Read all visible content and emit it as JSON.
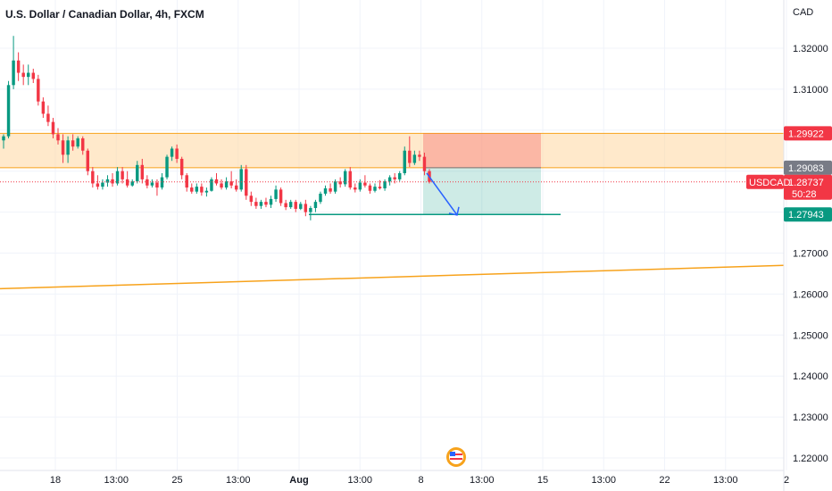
{
  "chart_data": {
    "type": "candlestick",
    "title": "U.S. Dollar / Canadian Dollar, 4h, FXCM",
    "currency": "CAD",
    "symbol": "USDCAD",
    "countdown": "50:28",
    "y_ticks": [
      "1.32000",
      "1.31000",
      "1.30000",
      "1.29000",
      "1.28000",
      "1.27000",
      "1.26000",
      "1.25000",
      "1.24000",
      "1.23000",
      "1.22000"
    ],
    "x_ticks": [
      "18",
      "13:00",
      "25",
      "13:00",
      "Aug",
      "13:00",
      "8",
      "13:00",
      "15",
      "13:00",
      "22",
      "13:00",
      "2"
    ],
    "ylim": [
      1.2192,
      1.3228
    ],
    "price_tags": [
      {
        "name": "zone-top",
        "label": "1.29922",
        "price": 1.29922,
        "color": "#f23645"
      },
      {
        "name": "zone-bottom",
        "label": "1.29083",
        "price": 1.29083,
        "color": "#787b86"
      },
      {
        "name": "current",
        "label": "1.28737",
        "price": 1.28737,
        "color": "#f23645"
      },
      {
        "name": "target",
        "label": "1.27943",
        "price": 1.27943,
        "color": "#089981"
      }
    ],
    "supply_zone": {
      "top": 1.29922,
      "bottom": 1.29083,
      "color": "#ffd7a0"
    },
    "position": {
      "type": "short",
      "entry": 1.29083,
      "stop": 1.29922,
      "target": 1.27943
    },
    "trendline": {
      "start_price": 1.2613,
      "end_price": 1.267,
      "color": "#f7a21b"
    },
    "colors": {
      "up": "#089981",
      "down": "#f23645",
      "grid": "#f0f3fa",
      "text": "#131722"
    },
    "candles": [
      [
        1.2975,
        1.299,
        1.2955,
        1.2985
      ],
      [
        1.2985,
        1.312,
        1.298,
        1.311
      ],
      [
        1.311,
        1.323,
        1.31,
        1.317
      ],
      [
        1.317,
        1.319,
        1.312,
        1.314
      ],
      [
        1.314,
        1.316,
        1.311,
        1.313
      ],
      [
        1.313,
        1.316,
        1.311,
        1.314
      ],
      [
        1.314,
        1.315,
        1.3115,
        1.3125
      ],
      [
        1.3125,
        1.3135,
        1.306,
        1.307
      ],
      [
        1.307,
        1.308,
        1.303,
        1.304
      ],
      [
        1.304,
        1.306,
        1.301,
        1.302
      ],
      [
        1.302,
        1.303,
        1.298,
        1.299
      ],
      [
        1.299,
        1.3005,
        1.2965,
        1.2975
      ],
      [
        1.2975,
        1.299,
        1.292,
        1.294
      ],
      [
        1.294,
        1.2985,
        1.292,
        1.2975
      ],
      [
        1.2975,
        1.299,
        1.295,
        1.296
      ],
      [
        1.296,
        1.2985,
        1.2955,
        1.298
      ],
      [
        1.298,
        1.2985,
        1.294,
        1.295
      ],
      [
        1.295,
        1.2955,
        1.289,
        1.29
      ],
      [
        1.29,
        1.291,
        1.286,
        1.287
      ],
      [
        1.287,
        1.289,
        1.2855,
        1.2862
      ],
      [
        1.2862,
        1.288,
        1.2855,
        1.2872
      ],
      [
        1.2872,
        1.289,
        1.2862,
        1.288
      ],
      [
        1.288,
        1.2895,
        1.2862,
        1.287
      ],
      [
        1.287,
        1.291,
        1.2865,
        1.29
      ],
      [
        1.29,
        1.291,
        1.287,
        1.288
      ],
      [
        1.288,
        1.29,
        1.286,
        1.2865
      ],
      [
        1.2865,
        1.288,
        1.2862,
        1.2875
      ],
      [
        1.2875,
        1.2925,
        1.287,
        1.2915
      ],
      [
        1.2915,
        1.293,
        1.287,
        1.288
      ],
      [
        1.288,
        1.289,
        1.2858,
        1.2865
      ],
      [
        1.2865,
        1.288,
        1.286,
        1.2872
      ],
      [
        1.2872,
        1.288,
        1.284,
        1.286
      ],
      [
        1.286,
        1.2895,
        1.2855,
        1.2885
      ],
      [
        1.2885,
        1.294,
        1.288,
        1.2935
      ],
      [
        1.2935,
        1.296,
        1.2925,
        1.2955
      ],
      [
        1.2955,
        1.2965,
        1.292,
        1.293
      ],
      [
        1.293,
        1.2935,
        1.288,
        1.289
      ],
      [
        1.289,
        1.2895,
        1.285,
        1.286
      ],
      [
        1.286,
        1.287,
        1.2845,
        1.285
      ],
      [
        1.285,
        1.287,
        1.2845,
        1.2862
      ],
      [
        1.2862,
        1.287,
        1.284,
        1.2848
      ],
      [
        1.2848,
        1.286,
        1.2838,
        1.2852
      ],
      [
        1.2852,
        1.2885,
        1.285,
        1.288
      ],
      [
        1.288,
        1.2895,
        1.2865,
        1.287
      ],
      [
        1.287,
        1.288,
        1.2855,
        1.286
      ],
      [
        1.286,
        1.2885,
        1.2855,
        1.2875
      ],
      [
        1.2875,
        1.29,
        1.2858,
        1.2865
      ],
      [
        1.2865,
        1.288,
        1.285,
        1.2855
      ],
      [
        1.2855,
        1.2915,
        1.285,
        1.2905
      ],
      [
        1.2905,
        1.2915,
        1.283,
        1.284
      ],
      [
        1.284,
        1.285,
        1.2815,
        1.2825
      ],
      [
        1.2825,
        1.2835,
        1.2808,
        1.2815
      ],
      [
        1.2815,
        1.283,
        1.2808,
        1.2825
      ],
      [
        1.2825,
        1.2835,
        1.2812,
        1.2818
      ],
      [
        1.2818,
        1.284,
        1.281,
        1.2832
      ],
      [
        1.2832,
        1.2865,
        1.2825,
        1.2855
      ],
      [
        1.2855,
        1.286,
        1.2815,
        1.2822
      ],
      [
        1.2822,
        1.283,
        1.2805,
        1.2812
      ],
      [
        1.2812,
        1.283,
        1.2808,
        1.2825
      ],
      [
        1.2825,
        1.283,
        1.28,
        1.2808
      ],
      [
        1.2808,
        1.2825,
        1.2805,
        1.282
      ],
      [
        1.282,
        1.283,
        1.279,
        1.28
      ],
      [
        1.28,
        1.2815,
        1.278,
        1.281
      ],
      [
        1.281,
        1.283,
        1.28,
        1.2825
      ],
      [
        1.2825,
        1.285,
        1.282,
        1.2845
      ],
      [
        1.2845,
        1.2865,
        1.284,
        1.2858
      ],
      [
        1.2858,
        1.287,
        1.2845,
        1.285
      ],
      [
        1.285,
        1.288,
        1.2845,
        1.2875
      ],
      [
        1.2875,
        1.2885,
        1.286,
        1.2868
      ],
      [
        1.2868,
        1.2905,
        1.2862,
        1.29
      ],
      [
        1.29,
        1.291,
        1.2855,
        1.286
      ],
      [
        1.286,
        1.287,
        1.2848,
        1.2855
      ],
      [
        1.2855,
        1.288,
        1.285,
        1.2872
      ],
      [
        1.2872,
        1.289,
        1.286,
        1.2865
      ],
      [
        1.2865,
        1.287,
        1.2845,
        1.2852
      ],
      [
        1.2852,
        1.287,
        1.2848,
        1.2862
      ],
      [
        1.2862,
        1.2878,
        1.2855,
        1.2858
      ],
      [
        1.2858,
        1.288,
        1.2852,
        1.2875
      ],
      [
        1.2875,
        1.289,
        1.2865,
        1.2885
      ],
      [
        1.2885,
        1.2895,
        1.287,
        1.288
      ],
      [
        1.288,
        1.29,
        1.2875,
        1.2895
      ],
      [
        1.2895,
        1.296,
        1.289,
        1.295
      ],
      [
        1.295,
        1.2985,
        1.291,
        1.292
      ],
      [
        1.292,
        1.295,
        1.2915,
        1.294
      ],
      [
        1.294,
        1.295,
        1.2925,
        1.2935
      ],
      [
        1.2935,
        1.2945,
        1.289,
        1.29
      ],
      [
        1.29,
        1.2905,
        1.287,
        1.2874
      ]
    ]
  }
}
